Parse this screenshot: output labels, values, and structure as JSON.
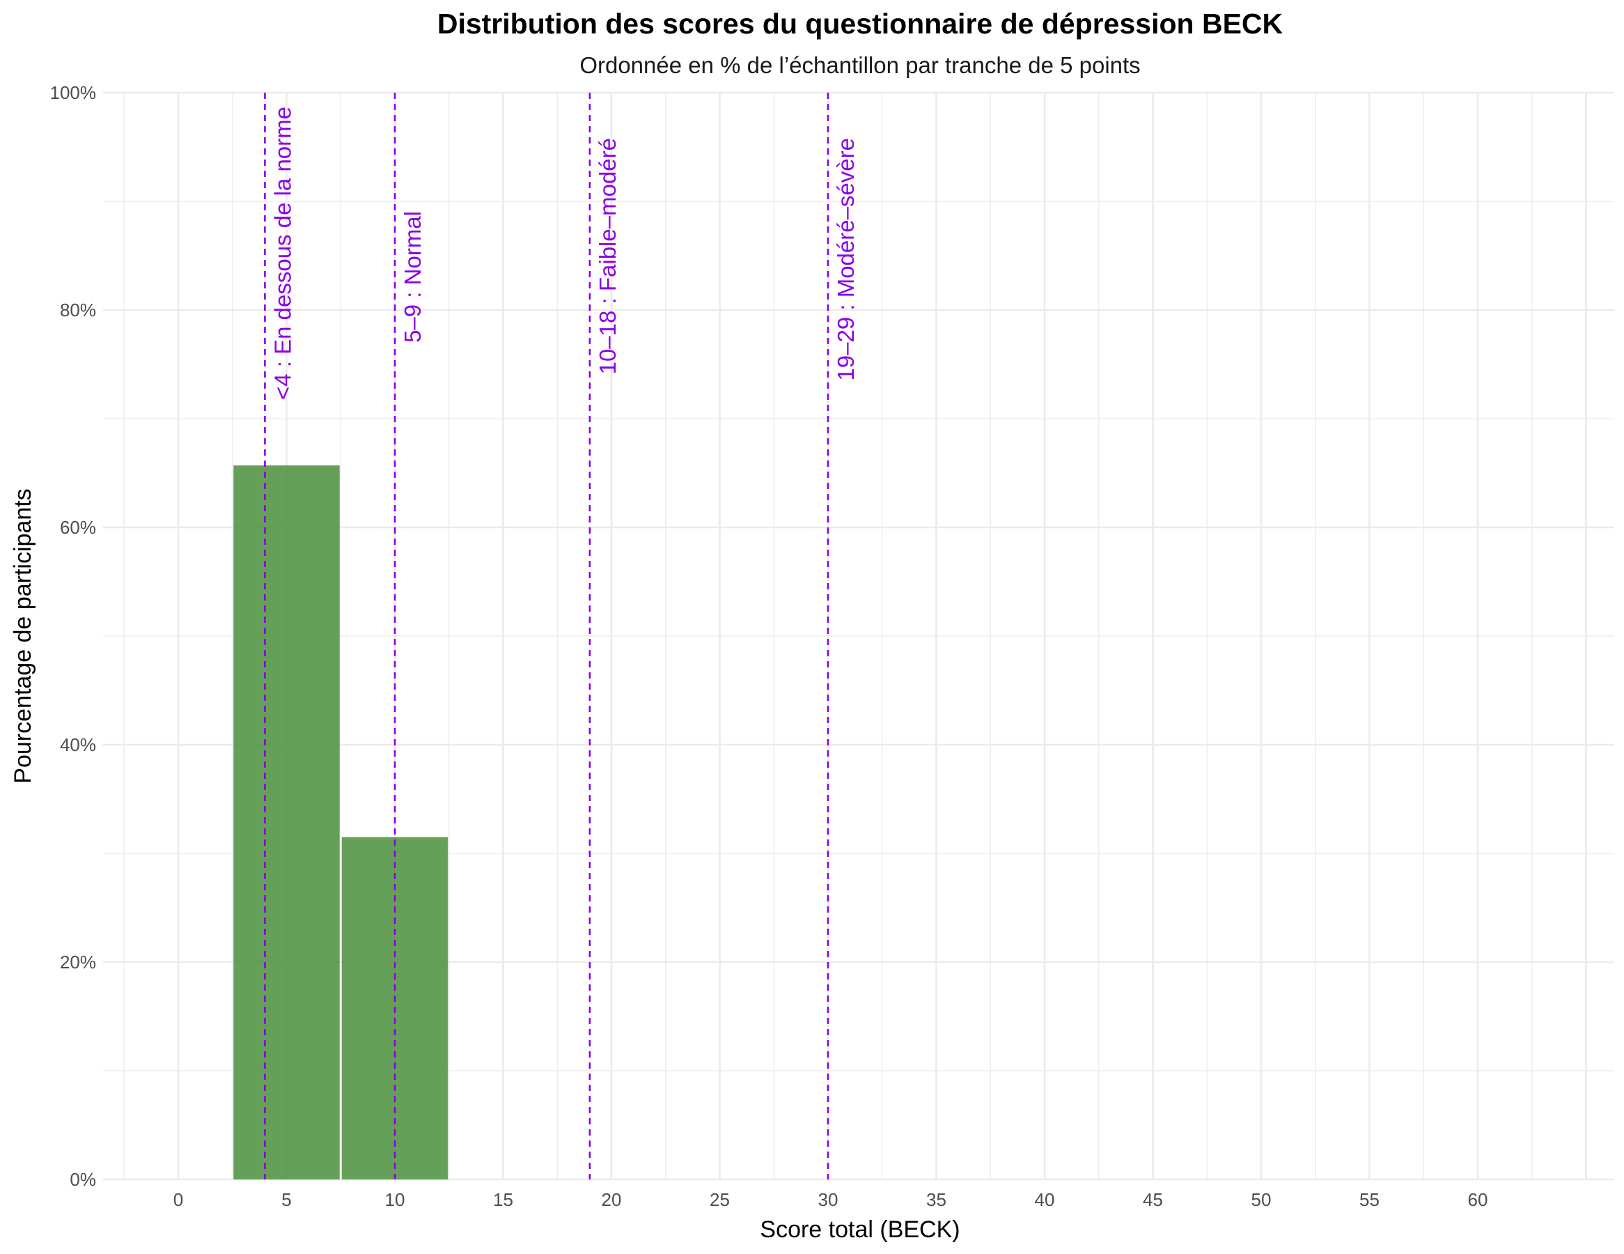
{
  "chart_data": {
    "type": "bar",
    "title": "Distribution des scores du questionnaire de dépression BECK",
    "subtitle": "Ordonnée en % de l’échantillon par tranche de 5 points",
    "xlabel": "Score total (BECK)",
    "ylabel": "Pourcentage de participants",
    "xlim": [
      -12.5,
      65
    ],
    "ylim": [
      0,
      1
    ],
    "x_ticks": [
      0,
      5,
      10,
      15,
      20,
      25,
      30,
      35,
      40,
      45,
      50,
      55,
      60
    ],
    "x_tick_labels": [
      "0",
      "5",
      "10",
      "15",
      "20",
      "25",
      "30",
      "35",
      "40",
      "45",
      "50",
      "55",
      "60"
    ],
    "y_ticks": [
      0,
      0.2,
      0.4,
      0.6,
      0.8,
      1.0
    ],
    "y_tick_labels": [
      "0%",
      "20%",
      "40%",
      "60%",
      "80%",
      "100%"
    ],
    "grid": true,
    "bins": [
      {
        "x_start": 2.5,
        "x_end": 7.5,
        "value": 0.657
      },
      {
        "x_start": 7.5,
        "x_end": 12.5,
        "value": 0.315
      }
    ],
    "bar_color": "#4a8f3c",
    "reference_lines": [
      {
        "x": 4,
        "label": "<4 : En dessous de la norme"
      },
      {
        "x": 10,
        "label": "5–9 : Normal"
      },
      {
        "x": 19,
        "label": "10–18 : Faible–modéré"
      },
      {
        "x": 30,
        "label": "19–29 : Modéré–sévère"
      }
    ],
    "reference_line_color": "#8b00e6"
  }
}
